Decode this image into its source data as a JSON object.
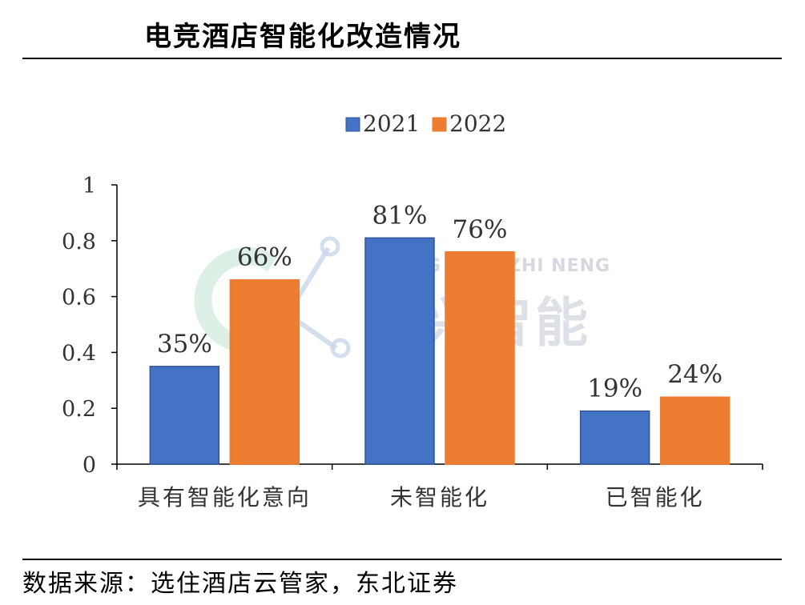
{
  "header": {
    "title": "电竞酒店智能化改造情况"
  },
  "footer": {
    "source": "数据来源：选住酒店云管家，东北证券"
  },
  "watermark": {
    "brand_latin": "CHANG XING ZHI NENG",
    "brand_cn": "长兴智能"
  },
  "colors": {
    "series_2021": "#4472C4",
    "series_2022": "#ED7D31",
    "axis": "#000000"
  },
  "chart_data": {
    "type": "bar",
    "title": "",
    "xlabel": "",
    "ylabel": "",
    "categories": [
      "具有智能化意向",
      "未智能化",
      "已智能化"
    ],
    "series": [
      {
        "name": "2021",
        "values": [
          0.35,
          0.81,
          0.19
        ],
        "labels": [
          "35%",
          "81%",
          "19%"
        ]
      },
      {
        "name": "2022",
        "values": [
          0.66,
          0.76,
          0.24
        ],
        "labels": [
          "66%",
          "76%",
          "24%"
        ]
      }
    ],
    "ylim": [
      0,
      1
    ],
    "yticks": [
      "0",
      "0.2",
      "0.4",
      "0.6",
      "0.8",
      "1"
    ],
    "legend_position": "top-center",
    "grid": false
  }
}
